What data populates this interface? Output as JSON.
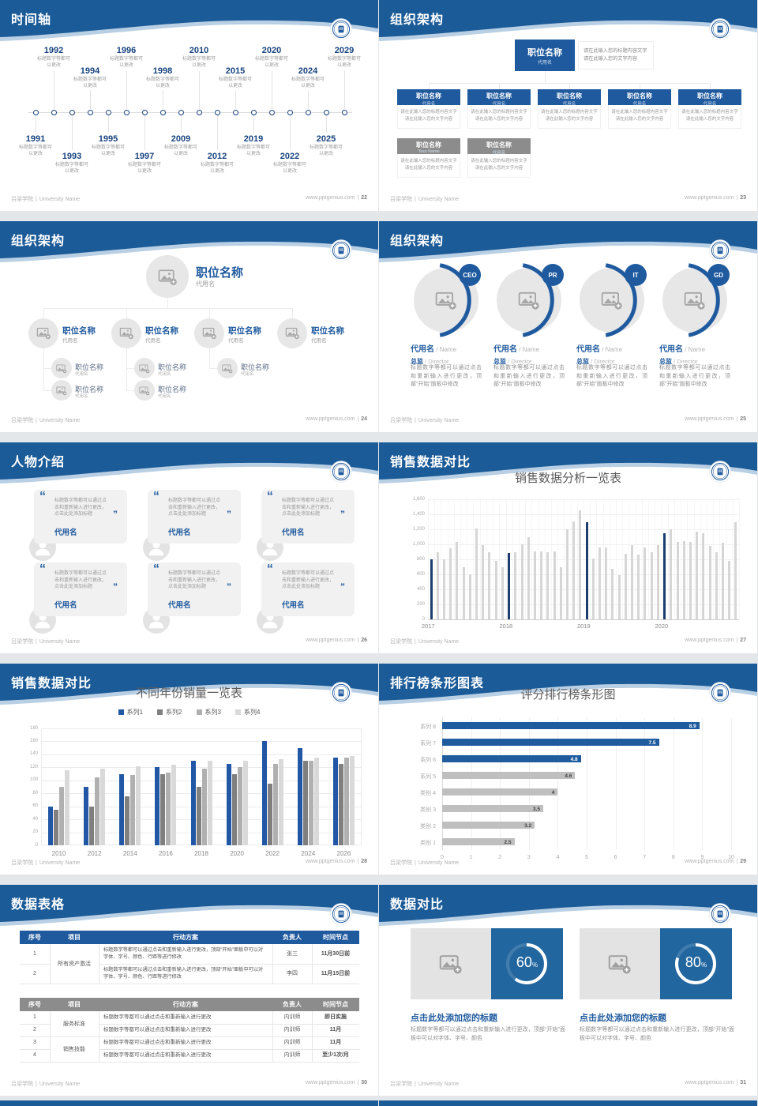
{
  "meta": {
    "colors": {
      "header_blue": "#1b5b98",
      "header_light": "#b9cfe4",
      "navy": "#17437f",
      "accent_blue": "#1f5a9e",
      "panel_blue": "#21669f",
      "bar_gray": "#d6d6d6",
      "bar_navy": "#1d3d6e",
      "table_header_blue": "#1f5a9e",
      "table_header_gray": "#8c8c8c",
      "text_gray": "#8a8a8a",
      "title_gray": "#595959",
      "footer_gray": "#b3b3b3",
      "card_bg": "#f1f1f1",
      "circle_gray": "#e7e7e7"
    }
  },
  "footer": {
    "org": "吕梁学院",
    "sep": "|",
    "org_en": "University Name",
    "site": "www.pptgenius.com"
  },
  "glyphs": {
    "quote_open": "“",
    "quote_close": "”"
  },
  "slides": [
    {
      "id": "timeline",
      "title": "时间轴",
      "page": "22",
      "caption": "标题数字等都可以更改",
      "top": [
        {
          "y": "1992",
          "lvl": 1
        },
        {
          "y": "1994",
          "lvl": 0
        },
        {
          "y": "1996",
          "lvl": 1
        },
        {
          "y": "1998",
          "lvl": 0
        },
        {
          "y": "2010",
          "lvl": 1
        },
        {
          "y": "2015",
          "lvl": 0
        },
        {
          "y": "2020",
          "lvl": 1
        },
        {
          "y": "2024",
          "lvl": 0
        },
        {
          "y": "2029",
          "lvl": 1
        }
      ],
      "bottom": [
        {
          "y": "1991",
          "lvl": 0
        },
        {
          "y": "1993",
          "lvl": 1
        },
        {
          "y": "1995",
          "lvl": 0
        },
        {
          "y": "1997",
          "lvl": 1
        },
        {
          "y": "2009",
          "lvl": 0
        },
        {
          "y": "2012",
          "lvl": 1
        },
        {
          "y": "2019",
          "lvl": 0
        },
        {
          "y": "2022",
          "lvl": 1
        },
        {
          "y": "2025",
          "lvl": 0
        }
      ]
    },
    {
      "id": "org-structure-boxes",
      "title": "组织架构",
      "page": "23",
      "box_title": "职位名称",
      "box_sub": "代用名",
      "box_sub_alt": "Your Name",
      "note1": "请在此输入您的标题内容文字",
      "note2": "请在此输入您的文字内容"
    },
    {
      "id": "org-structure-photos",
      "title": "组织架构",
      "page": "24",
      "node_title": "职位名称",
      "node_sub": "代用名"
    },
    {
      "id": "org-structure-team",
      "title": "组织架构",
      "page": "25",
      "badges": [
        "CEO",
        "PR",
        "IT",
        "GD"
      ],
      "name": "代用名",
      "name_en": "Name",
      "role": "总监",
      "role_en": "Director",
      "slash": "/",
      "para": "标题数字等都可以通过点击和重新输入进行更改，顶部“开始”面板中修改"
    },
    {
      "id": "people-intro",
      "title": "人物介绍",
      "page": "26",
      "quote": "标题数字等都可以通过点击和重新输入进行更改，点击此处添加标题",
      "name": "代用名"
    },
    {
      "id": "sales-compare-columns",
      "title": "销售数据对比",
      "page": "27",
      "chart": 0
    },
    {
      "id": "sales-compare-grouped",
      "title": "销售数据对比",
      "page": "28",
      "chart": 1
    },
    {
      "id": "ranking-hbar",
      "title": "排行榜条形图表",
      "page": "29",
      "chart": 2
    },
    {
      "id": "data-table",
      "title": "数据表格",
      "page": "30",
      "table1": {
        "headers": [
          "序号",
          "项目",
          "行动方案",
          "负责人",
          "时间节点"
        ],
        "project": "所有资产激活",
        "action": "标题数字等都可以通过点击和重新输入进行更改，顶部“开始”面板中可以对字体、字号、颜色、行距等进行修改",
        "rows": [
          {
            "no": "1",
            "owner": "张三",
            "time": "11月30日前"
          },
          {
            "no": "2",
            "owner": "李四",
            "time": "11月15日前"
          }
        ]
      },
      "table2": {
        "headers": [
          "序号",
          "项目",
          "行动方案",
          "负责人",
          "时间节点"
        ],
        "projects": [
          "服务标准",
          "销售技能"
        ],
        "action": "标题数字等都可以通过点击和重新输入进行更改",
        "rows": [
          {
            "no": "1",
            "owner": "内训师",
            "time": "即日实施"
          },
          {
            "no": "2",
            "owner": "内训师",
            "time": "11月"
          },
          {
            "no": "3",
            "owner": "内训师",
            "time": "11月"
          },
          {
            "no": "4",
            "owner": "内训师",
            "time": "至少1次/月"
          }
        ]
      }
    },
    {
      "id": "data-compare",
      "title": "数据对比",
      "page": "31",
      "panels": [
        {
          "pct": "60"
        },
        {
          "pct": "80"
        }
      ],
      "pct_sign": "%",
      "heading": "点击此处添加您的标题",
      "para": "标题数字等都可以通过点击和重新输入进行更改，顶部“开始”面板中可以对字体、字号、颜色"
    }
  ],
  "chart_data": [
    {
      "type": "bar",
      "title": "销售数据分析一览表",
      "groups": [
        "2017",
        "2018",
        "2019",
        "2020"
      ],
      "values": [
        800,
        900,
        800,
        950,
        1030,
        700,
        600,
        1210,
        990,
        890,
        780,
        700,
        880,
        900,
        1000,
        1100,
        910,
        910,
        890,
        910,
        700,
        1200,
        1310,
        1450,
        1300,
        810,
        960,
        960,
        670,
        590,
        870,
        990,
        860,
        960,
        900,
        990,
        1150,
        1200,
        1030,
        1040,
        1030,
        1170,
        1150,
        980,
        900,
        1020,
        780,
        1300
      ],
      "highlight_indices": [
        0,
        12,
        24,
        36
      ],
      "bar_color": "#d6d6d6",
      "highlight_color": "#1d3d6e",
      "ylim": [
        0,
        1600
      ],
      "yticks": [
        "0",
        "200",
        "400",
        "600",
        "800",
        "1,000",
        "1,200",
        "1,400",
        "1,600"
      ],
      "grid": true,
      "legend_position": "none"
    },
    {
      "type": "bar",
      "title": "不同年份销量一览表",
      "categories": [
        "2010",
        "2012",
        "2014",
        "2016",
        "2018",
        "2020",
        "2022",
        "2024",
        "2026"
      ],
      "series": [
        {
          "name": "系列1",
          "color": "#2157a4",
          "values": [
            60,
            90,
            110,
            120,
            130,
            125,
            160,
            150,
            135
          ]
        },
        {
          "name": "系列2",
          "color": "#7f7f7f",
          "values": [
            55,
            60,
            75,
            110,
            90,
            110,
            95,
            130,
            125
          ]
        },
        {
          "name": "系列3",
          "color": "#b0b0b0",
          "values": [
            90,
            105,
            108,
            112,
            118,
            120,
            125,
            130,
            135
          ]
        },
        {
          "name": "系列4",
          "color": "#d9d9d9",
          "values": [
            115,
            118,
            122,
            124,
            130,
            130,
            133,
            135,
            138
          ]
        }
      ],
      "ylim": [
        0,
        180
      ],
      "yticks": [
        "0",
        "20",
        "40",
        "60",
        "80",
        "100",
        "120",
        "140",
        "160",
        "180"
      ],
      "grid": true,
      "legend_position": "top"
    },
    {
      "type": "bar-horizontal",
      "title": "评分排行榜条形图",
      "categories": [
        "系列 8",
        "系列 7",
        "系列 6",
        "系列 5",
        "类别 4",
        "类别 3",
        "类别 2",
        "类别 1"
      ],
      "values": [
        8.9,
        7.5,
        4.8,
        4.6,
        4,
        3.5,
        3.2,
        2.5
      ],
      "labels": [
        "8.9",
        "7.5",
        "4.8",
        "4.6",
        "4",
        "3.5",
        "3.2",
        "2.5"
      ],
      "colors": [
        "#1f5c9e",
        "#1f5c9e",
        "#1f5c9e",
        "#bfbfbf",
        "#bfbfbf",
        "#bfbfbf",
        "#bfbfbf",
        "#bfbfbf"
      ],
      "xlim": [
        0,
        10
      ],
      "xticks": [
        "0",
        "1",
        "2",
        "3",
        "4",
        "5",
        "6",
        "7",
        "8",
        "9",
        "10"
      ],
      "grid": true,
      "legend_position": "none"
    }
  ]
}
